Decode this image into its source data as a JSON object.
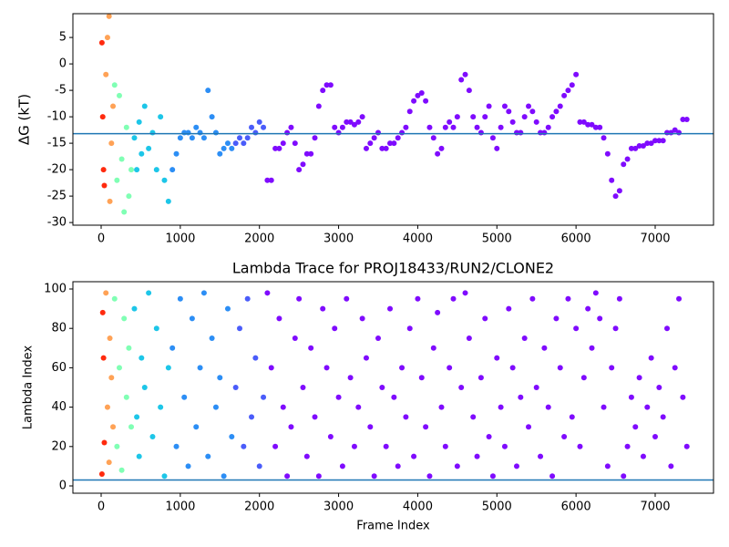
{
  "chart_data": [
    {
      "type": "scatter",
      "ylabel": "ΔG (kT)",
      "xlim": [
        -357,
        7737
      ],
      "ylim": [
        -30.5,
        9.5
      ],
      "xticks": [
        0,
        1000,
        2000,
        3000,
        4000,
        5000,
        6000,
        7000
      ],
      "yticks": [
        -30,
        -25,
        -20,
        -15,
        -10,
        -5,
        0,
        5
      ],
      "hline": {
        "value": -13.2,
        "color": "#1f77b4"
      },
      "series": [
        {
          "color": "#ff2a0e",
          "x": [
            10,
            20,
            30,
            40
          ],
          "values": [
            4,
            -10,
            -20,
            -23
          ]
        },
        {
          "color": "#ffa256",
          "x": [
            60,
            80,
            100,
            110,
            130,
            150
          ],
          "values": [
            -2,
            5,
            9,
            -26,
            -15,
            -8
          ]
        },
        {
          "color": "#80ffb4",
          "x": [
            170,
            200,
            230,
            260,
            290,
            320,
            350,
            380
          ],
          "values": [
            -4,
            -22,
            -6,
            -18,
            -28,
            -12,
            -25,
            -20
          ]
        },
        {
          "color": "#1dc6e8",
          "x": [
            420,
            450,
            480,
            510,
            550,
            600,
            650,
            700,
            750,
            800,
            850
          ],
          "values": [
            -14,
            -20,
            -11,
            -17,
            -8,
            -16,
            -13,
            -20,
            -10,
            -22,
            -26
          ]
        },
        {
          "color": "#2c8ef5",
          "x": [
            900,
            950,
            1000,
            1050,
            1100,
            1150,
            1200,
            1250,
            1300,
            1350,
            1400,
            1450,
            1500,
            1550,
            1600,
            1650
          ],
          "values": [
            -20,
            -17,
            -14,
            -13,
            -13,
            -14,
            -12,
            -13,
            -14,
            -5,
            -10,
            -13,
            -17,
            -16,
            -15,
            -16
          ]
        },
        {
          "color": "#4a5cfa",
          "x": [
            1700,
            1750,
            1800,
            1850,
            1900,
            1950,
            2000,
            2050
          ],
          "values": [
            -15,
            -14,
            -15,
            -14,
            -12,
            -13,
            -11,
            -12
          ]
        },
        {
          "color": "#7f0bfe",
          "x": [
            2100,
            2150,
            2200,
            2250,
            2300,
            2350,
            2400,
            2450,
            2500,
            2550,
            2600,
            2650,
            2700,
            2750,
            2800,
            2850,
            2900,
            2950,
            3000,
            3050,
            3100,
            3150,
            3200,
            3250,
            3300,
            3350,
            3400,
            3450,
            3500,
            3550,
            3600,
            3650,
            3700,
            3750,
            3800,
            3850,
            3900,
            3950,
            4000,
            4050,
            4100,
            4150,
            4200,
            4250,
            4300,
            4350,
            4400,
            4450,
            4500,
            4550,
            4600,
            4650,
            4700,
            4750,
            4800,
            4850,
            4900,
            4950,
            5000,
            5050,
            5100,
            5150,
            5200,
            5250,
            5300,
            5350,
            5400,
            5450,
            5500,
            5550,
            5600,
            5650,
            5700,
            5750,
            5800,
            5850,
            5900,
            5950,
            6000,
            6050,
            6100,
            6150,
            6200,
            6250,
            6300,
            6350,
            6400,
            6450,
            6500,
            6550,
            6600,
            6650,
            6700,
            6750,
            6800,
            6850,
            6900,
            6950,
            7000,
            7050,
            7100,
            7150,
            7200,
            7250,
            7300,
            7350,
            7400
          ],
          "values": [
            -22,
            -22,
            -16,
            -16,
            -15,
            -13,
            -12,
            -15,
            -20,
            -19,
            -17,
            -17,
            -14,
            -8,
            -5,
            -4,
            -4,
            -12,
            -13,
            -12,
            -11,
            -11,
            -11.5,
            -11,
            -10,
            -16,
            -15,
            -14,
            -13,
            -16,
            -16,
            -15,
            -15,
            -14,
            -13,
            -12,
            -9,
            -7,
            -6,
            -5.5,
            -7,
            -12,
            -14,
            -17,
            -16,
            -12,
            -11,
            -12,
            -10,
            -3,
            -2,
            -5,
            -10,
            -12,
            -13,
            -10,
            -8,
            -14,
            -16,
            -12,
            -8,
            -9,
            -11,
            -13,
            -13,
            -10,
            -8,
            -9,
            -11,
            -13,
            -13,
            -12,
            -10,
            -9,
            -8,
            -6,
            -5,
            -4,
            -2,
            -11,
            -11,
            -11.5,
            -11.5,
            -12,
            -12,
            -14,
            -17,
            -22,
            -25,
            -24,
            -19,
            -18,
            -16,
            -16,
            -15.5,
            -15.5,
            -15,
            -15,
            -14.5,
            -14.5,
            -14.5,
            -13,
            -13,
            -12.5,
            -13,
            -10.5,
            -10.5
          ]
        }
      ]
    },
    {
      "type": "scatter",
      "title": "Lambda Trace for PROJ18433/RUN2/CLONE2",
      "xlabel": "Frame Index",
      "ylabel": "Lambda Index",
      "xlim": [
        -357,
        7737
      ],
      "ylim": [
        -3.7,
        103.7
      ],
      "xticks": [
        0,
        1000,
        2000,
        3000,
        4000,
        5000,
        6000,
        7000
      ],
      "yticks": [
        0,
        20,
        40,
        60,
        80,
        100
      ],
      "hline": {
        "value": 3,
        "color": "#1f77b4"
      },
      "series": [
        {
          "color": "#ff2a0e",
          "x": [
            10,
            20,
            30,
            40
          ],
          "values": [
            6,
            88,
            65,
            22
          ]
        },
        {
          "color": "#ffa256",
          "x": [
            60,
            80,
            100,
            110,
            130,
            150
          ],
          "values": [
            98,
            40,
            12,
            75,
            55,
            30
          ]
        },
        {
          "color": "#80ffb4",
          "x": [
            170,
            200,
            230,
            260,
            290,
            320,
            350,
            380
          ],
          "values": [
            95,
            20,
            60,
            8,
            85,
            45,
            70,
            30
          ]
        },
        {
          "color": "#1dc6e8",
          "x": [
            420,
            450,
            480,
            510,
            550,
            600,
            650,
            700,
            750,
            800,
            850
          ],
          "values": [
            90,
            35,
            15,
            65,
            50,
            98,
            25,
            80,
            40,
            5,
            60
          ]
        },
        {
          "color": "#2c8ef5",
          "x": [
            900,
            950,
            1000,
            1050,
            1100,
            1150,
            1200,
            1250,
            1300,
            1350,
            1400,
            1450,
            1500,
            1550,
            1600,
            1650
          ],
          "values": [
            70,
            20,
            95,
            45,
            10,
            85,
            30,
            60,
            98,
            15,
            75,
            40,
            55,
            5,
            90,
            25
          ]
        },
        {
          "color": "#4a5cfa",
          "x": [
            1700,
            1750,
            1800,
            1850,
            1900,
            1950,
            2000,
            2050
          ],
          "values": [
            50,
            80,
            20,
            95,
            35,
            65,
            10,
            45
          ]
        },
        {
          "color": "#7f0bfe",
          "x": [
            2100,
            2150,
            2200,
            2250,
            2300,
            2350,
            2400,
            2450,
            2500,
            2550,
            2600,
            2650,
            2700,
            2750,
            2800,
            2850,
            2900,
            2950,
            3000,
            3050,
            3100,
            3150,
            3200,
            3250,
            3300,
            3350,
            3400,
            3450,
            3500,
            3550,
            3600,
            3650,
            3700,
            3750,
            3800,
            3850,
            3900,
            3950,
            4000,
            4050,
            4100,
            4150,
            4200,
            4250,
            4300,
            4350,
            4400,
            4450,
            4500,
            4550,
            4600,
            4650,
            4700,
            4750,
            4800,
            4850,
            4900,
            4950,
            5000,
            5050,
            5100,
            5150,
            5200,
            5250,
            5300,
            5350,
            5400,
            5450,
            5500,
            5550,
            5600,
            5650,
            5700,
            5750,
            5800,
            5850,
            5900,
            5950,
            6000,
            6050,
            6100,
            6150,
            6200,
            6250,
            6300,
            6350,
            6400,
            6450,
            6500,
            6550,
            6600,
            6650,
            6700,
            6750,
            6800,
            6850,
            6900,
            6950,
            7000,
            7050,
            7100,
            7150,
            7200,
            7250,
            7300,
            7350,
            7400
          ],
          "values": [
            98,
            60,
            20,
            85,
            40,
            5,
            30,
            75,
            95,
            50,
            15,
            70,
            35,
            5,
            90,
            60,
            25,
            80,
            45,
            10,
            95,
            55,
            20,
            40,
            85,
            65,
            30,
            5,
            75,
            50,
            20,
            90,
            45,
            10,
            60,
            35,
            80,
            15,
            95,
            55,
            30,
            5,
            70,
            88,
            40,
            20,
            60,
            95,
            10,
            50,
            98,
            75,
            35,
            15,
            55,
            85,
            25,
            5,
            65,
            40,
            20,
            90,
            60,
            10,
            45,
            75,
            30,
            95,
            50,
            15,
            70,
            40,
            5,
            85,
            60,
            25,
            95,
            35,
            80,
            20,
            55,
            90,
            70,
            98,
            85,
            40,
            10,
            60,
            80,
            95,
            5,
            20,
            45,
            30,
            55,
            15,
            40,
            65,
            25,
            50,
            35,
            80,
            10,
            60,
            95,
            45,
            20
          ]
        }
      ]
    }
  ]
}
